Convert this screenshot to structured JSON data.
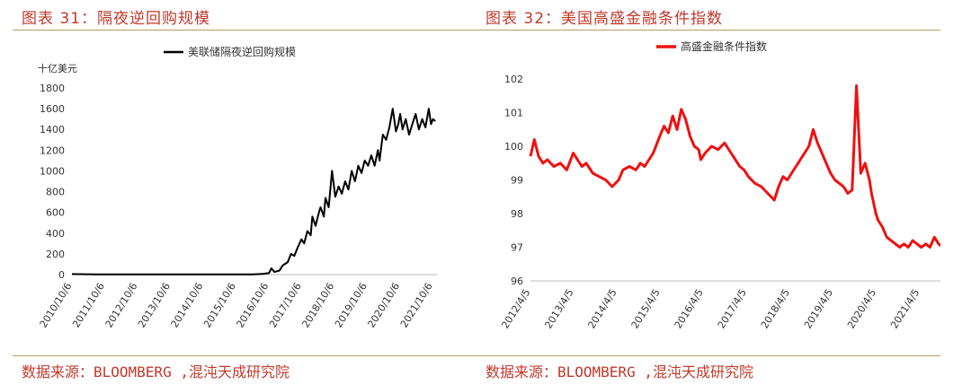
{
  "panels": [
    {
      "title": "图表 31：隔夜逆回购规模",
      "source": "数据来源：BLOOMBERG ,混沌天成研究院"
    },
    {
      "title": "图表 32：美国高盛金融条件指数",
      "source": "数据来源：BLOOMBERG ,混沌天成研究院"
    }
  ],
  "chart_data": [
    {
      "type": "line",
      "title": "",
      "ylabel": "十亿美元",
      "xlabel": "",
      "ylim": [
        0,
        1800
      ],
      "yticks": [
        0,
        200,
        400,
        600,
        800,
        1000,
        1200,
        1400,
        1600,
        1800
      ],
      "x_tick_labels": [
        "2010/10/6",
        "2011/10/6",
        "2012/10/6",
        "2013/10/6",
        "2014/10/6",
        "2015/10/6",
        "2016/10/6",
        "2017/10/6",
        "2018/10/6",
        "2019/10/6",
        "2020/10/6",
        "2021/10/6"
      ],
      "legend": "top-center",
      "color": "#000000",
      "series": [
        {
          "name": "美联储隔夜逆回购规模",
          "x": [
            2010.77,
            2011.5,
            2012.5,
            2013.5,
            2014.5,
            2015.5,
            2016.3,
            2016.6,
            2016.78,
            2016.85,
            2016.95,
            2017.1,
            2017.2,
            2017.35,
            2017.45,
            2017.55,
            2017.65,
            2017.77,
            2017.85,
            2017.95,
            2018.05,
            2018.1,
            2018.2,
            2018.3,
            2018.35,
            2018.45,
            2018.5,
            2018.6,
            2018.7,
            2018.8,
            2018.9,
            2019.0,
            2019.1,
            2019.2,
            2019.3,
            2019.4,
            2019.5,
            2019.6,
            2019.7,
            2019.8,
            2019.9,
            2020.0,
            2020.1,
            2020.15,
            2020.25,
            2020.35,
            2020.45,
            2020.55,
            2020.65,
            2020.72,
            2020.78,
            2020.85,
            2020.95,
            2021.05,
            2021.15,
            2021.25,
            2021.35,
            2021.45,
            2021.55,
            2021.65,
            2021.72,
            2021.78,
            2021.85
          ],
          "values": [
            5,
            3,
            2,
            2,
            2,
            2,
            2,
            8,
            15,
            60,
            25,
            40,
            90,
            120,
            200,
            180,
            260,
            340,
            300,
            420,
            380,
            560,
            470,
            600,
            650,
            560,
            740,
            650,
            1000,
            750,
            850,
            780,
            900,
            820,
            1000,
            900,
            1050,
            980,
            1100,
            1050,
            1150,
            1050,
            1200,
            1100,
            1350,
            1300,
            1420,
            1600,
            1380,
            1450,
            1550,
            1400,
            1500,
            1350,
            1450,
            1550,
            1400,
            1500,
            1420,
            1600,
            1450,
            1500,
            1480
          ]
        }
      ]
    },
    {
      "type": "line",
      "title": "",
      "ylabel": "",
      "xlabel": "",
      "ylim": [
        96,
        102
      ],
      "yticks": [
        96,
        97,
        98,
        99,
        100,
        101,
        102
      ],
      "x_tick_labels": [
        "2012/4/5",
        "2013/4/5",
        "2014/4/5",
        "2015/4/5",
        "2016/4/5",
        "2017/4/5",
        "2018/4/5",
        "2019/4/5",
        "2020/4/5",
        "2021/4/5"
      ],
      "legend": "top-center",
      "color": "#ee1111",
      "series": [
        {
          "name": "高盛金融条件指数",
          "x": [
            2012.26,
            2012.35,
            2012.45,
            2012.55,
            2012.65,
            2012.8,
            2012.95,
            2013.1,
            2013.25,
            2013.35,
            2013.45,
            2013.55,
            2013.7,
            2013.85,
            2014.0,
            2014.15,
            2014.3,
            2014.4,
            2014.55,
            2014.7,
            2014.8,
            2014.9,
            2015.0,
            2015.1,
            2015.25,
            2015.35,
            2015.45,
            2015.55,
            2015.65,
            2015.75,
            2015.85,
            2015.95,
            2016.05,
            2016.15,
            2016.2,
            2016.3,
            2016.45,
            2016.6,
            2016.75,
            2016.9,
            2017.0,
            2017.1,
            2017.2,
            2017.3,
            2017.45,
            2017.6,
            2017.75,
            2017.9,
            2018.0,
            2018.1,
            2018.2,
            2018.3,
            2018.4,
            2018.5,
            2018.6,
            2018.7,
            2018.8,
            2018.9,
            2019.0,
            2019.1,
            2019.2,
            2019.3,
            2019.4,
            2019.5,
            2019.6,
            2019.7,
            2019.8,
            2019.9,
            2020.0,
            2020.1,
            2020.15,
            2020.2,
            2020.25,
            2020.3,
            2020.4,
            2020.5,
            2020.6,
            2020.7,
            2020.8,
            2020.9,
            2021.0,
            2021.1,
            2021.2,
            2021.3,
            2021.4,
            2021.5,
            2021.6,
            2021.7,
            2021.8,
            2021.9
          ],
          "values": [
            99.7,
            100.2,
            99.7,
            99.5,
            99.6,
            99.4,
            99.5,
            99.3,
            99.8,
            99.6,
            99.4,
            99.5,
            99.2,
            99.1,
            99.0,
            98.8,
            99.0,
            99.3,
            99.4,
            99.3,
            99.5,
            99.4,
            99.6,
            99.8,
            100.3,
            100.6,
            100.4,
            100.9,
            100.5,
            101.1,
            100.8,
            100.3,
            100.0,
            99.9,
            99.6,
            99.8,
            100.0,
            99.9,
            100.1,
            99.8,
            99.6,
            99.4,
            99.3,
            99.1,
            98.9,
            98.8,
            98.6,
            98.4,
            98.8,
            99.1,
            99.0,
            99.2,
            99.4,
            99.6,
            99.8,
            100.0,
            100.5,
            100.1,
            99.8,
            99.5,
            99.2,
            99.0,
            98.9,
            98.8,
            98.6,
            98.7,
            101.8,
            99.2,
            99.5,
            99.0,
            98.6,
            98.3,
            98.0,
            97.8,
            97.6,
            97.3,
            97.2,
            97.1,
            97.0,
            97.1,
            97.0,
            97.2,
            97.1,
            97.0,
            97.1,
            97.0,
            97.3,
            97.1,
            97.0,
            97.2
          ]
        }
      ]
    }
  ]
}
